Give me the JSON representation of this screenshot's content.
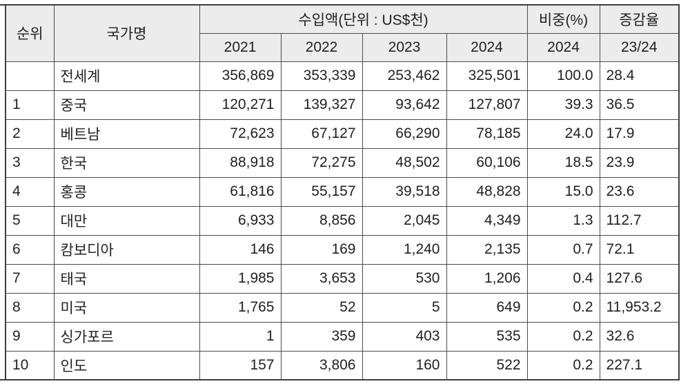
{
  "colors": {
    "page_bg": "#ffffff",
    "header_bg": "#ececec",
    "border": "#4a4a4a",
    "outer_border": "#3e3e3e",
    "text": "#1f1f1f"
  },
  "table": {
    "header": {
      "rank_label": "순위",
      "country_label": "국가명",
      "import_group_label": "수입액(단위 : US$천)",
      "share_group_label": "비중(%)",
      "growth_group_label": "증감율",
      "year_labels": [
        "2021",
        "2022",
        "2023",
        "2024"
      ],
      "share_year_label": "2024",
      "growth_period_label": "23/24"
    },
    "rows": [
      {
        "rank": "",
        "country": "전세계",
        "values": [
          "356,869",
          "353,339",
          "253,462",
          "325,501"
        ],
        "share": "100.0",
        "growth": "28.4"
      },
      {
        "rank": "1",
        "country": "중국",
        "values": [
          "120,271",
          "139,327",
          "93,642",
          "127,807"
        ],
        "share": "39.3",
        "growth": "36.5"
      },
      {
        "rank": "2",
        "country": "베트남",
        "values": [
          "72,623",
          "67,127",
          "66,290",
          "78,185"
        ],
        "share": "24.0",
        "growth": "17.9"
      },
      {
        "rank": "3",
        "country": "한국",
        "values": [
          "88,918",
          "72,275",
          "48,502",
          "60,106"
        ],
        "share": "18.5",
        "growth": "23.9"
      },
      {
        "rank": "4",
        "country": "홍콩",
        "values": [
          "61,816",
          "55,157",
          "39,518",
          "48,828"
        ],
        "share": "15.0",
        "growth": "23.6"
      },
      {
        "rank": "5",
        "country": "대만",
        "values": [
          "6,933",
          "8,856",
          "2,045",
          "4,349"
        ],
        "share": "1.3",
        "growth": "112.7"
      },
      {
        "rank": "6",
        "country": "캄보디아",
        "values": [
          "146",
          "169",
          "1,240",
          "2,135"
        ],
        "share": "0.7",
        "growth": "72.1"
      },
      {
        "rank": "7",
        "country": "태국",
        "values": [
          "1,985",
          "3,653",
          "530",
          "1,206"
        ],
        "share": "0.4",
        "growth": "127.6"
      },
      {
        "rank": "8",
        "country": "미국",
        "values": [
          "1,765",
          "52",
          "5",
          "649"
        ],
        "share": "0.2",
        "growth": "11,953.2"
      },
      {
        "rank": "9",
        "country": "싱가포르",
        "values": [
          "1",
          "359",
          "403",
          "535"
        ],
        "share": "0.2",
        "growth": "32.6"
      },
      {
        "rank": "10",
        "country": "인도",
        "values": [
          "157",
          "3,806",
          "160",
          "522"
        ],
        "share": "0.2",
        "growth": "227.1"
      }
    ]
  }
}
